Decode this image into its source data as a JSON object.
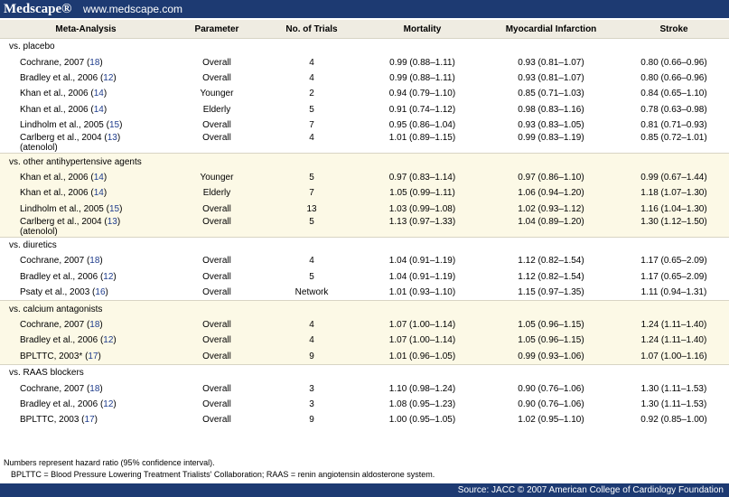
{
  "header": {
    "logo": "Medscape®",
    "url": "www.medscape.com"
  },
  "table": {
    "columns": [
      "Meta-Analysis",
      "Parameter",
      "No. of Trials",
      "Mortality",
      "Myocardial Infarction",
      "Stroke"
    ],
    "groups": [
      {
        "label": "vs. placebo",
        "rows": [
          [
            [
              "Cochrane, 2007 (",
              "18",
              ")"
            ],
            "Overall",
            4,
            "0.99 (0.88–1.11)",
            "0.93 (0.81–1.07)",
            "0.80 (0.66–0.96)"
          ],
          [
            [
              "Bradley et al., 2006 (",
              "12",
              ")"
            ],
            "Overall",
            4,
            "0.99 (0.88–1.11)",
            "0.93 (0.81–1.07)",
            "0.80 (0.66–0.96)"
          ],
          [
            [
              "Khan et al., 2006 (",
              "14",
              ")"
            ],
            "Younger",
            2,
            "0.94 (0.79–1.10)",
            "0.85 (0.71–1.03)",
            "0.84 (0.65–1.10)"
          ],
          [
            [
              "Khan et al., 2006 (",
              "14",
              ")"
            ],
            "Elderly",
            5,
            "0.91 (0.74–1.12)",
            "0.98 (0.83–1.16)",
            "0.78 (0.63–0.98)"
          ],
          [
            [
              "Lindholm et al., 2005 (",
              "15",
              ")"
            ],
            "Overall",
            7,
            "0.95 (0.86–1.04)",
            "0.93 (0.83–1.05)",
            "0.81 (0.71–0.93)"
          ],
          [
            [
              "Carlberg et al., 2004 (",
              "13",
              ")",
              "(atenolol)"
            ],
            "Overall",
            4,
            "1.01 (0.89–1.15)",
            "0.99 (0.83–1.19)",
            "0.85 (0.72–1.01)"
          ]
        ]
      },
      {
        "label": "vs. other antihypertensive agents",
        "rows": [
          [
            [
              "Khan et al., 2006 (",
              "14",
              ")"
            ],
            "Younger",
            5,
            "0.97 (0.83–1.14)",
            "0.97 (0.86–1.10)",
            "0.99 (0.67–1.44)"
          ],
          [
            [
              "Khan et al., 2006 (",
              "14",
              ")"
            ],
            "Elderly",
            7,
            "1.05 (0.99–1.11)",
            "1.06 (0.94–1.20)",
            "1.18 (1.07–1.30)"
          ],
          [
            [
              "Lindholm et al., 2005 (",
              "15",
              ")"
            ],
            "Overall",
            13,
            "1.03 (0.99–1.08)",
            "1.02 (0.93–1.12)",
            "1.16 (1.04–1.30)"
          ],
          [
            [
              "Carlberg et al., 2004 (",
              "13",
              ")",
              "(atenolol)"
            ],
            "Overall",
            5,
            "1.13 (0.97–1.33)",
            "1.04 (0.89–1.20)",
            "1.30 (1.12–1.50)"
          ]
        ]
      },
      {
        "label": "vs. diuretics",
        "rows": [
          [
            [
              "Cochrane, 2007 (",
              "18",
              ")"
            ],
            "Overall",
            4,
            "1.04 (0.91–1.19)",
            "1.12 (0.82–1.54)",
            "1.17 (0.65–2.09)"
          ],
          [
            [
              "Bradley et al., 2006 (",
              "12",
              ")"
            ],
            "Overall",
            5,
            "1.04 (0.91–1.19)",
            "1.12 (0.82–1.54)",
            "1.17 (0.65–2.09)"
          ],
          [
            [
              "Psaty et al., 2003 (",
              "16",
              ")"
            ],
            "Overall",
            "Network",
            "1.01 (0.93–1.10)",
            "1.15 (0.97–1.35)",
            "1.11 (0.94–1.31)"
          ]
        ]
      },
      {
        "label": "vs. calcium antagonists",
        "rows": [
          [
            [
              "Cochrane, 2007 (",
              "18",
              ")"
            ],
            "Overall",
            4,
            "1.07 (1.00–1.14)",
            "1.05 (0.96–1.15)",
            "1.24 (1.11–1.40)"
          ],
          [
            [
              "Bradley et al., 2006 (",
              "12",
              ")"
            ],
            "Overall",
            4,
            "1.07 (1.00–1.14)",
            "1.05 (0.96–1.15)",
            "1.24 (1.11–1.40)"
          ],
          [
            [
              "BPLTTC, 2003* (",
              "17",
              ")"
            ],
            "Overall",
            9,
            "1.01 (0.96–1.05)",
            "0.99 (0.93–1.06)",
            "1.07 (1.00–1.16)"
          ]
        ]
      },
      {
        "label": "vs. RAAS blockers",
        "rows": [
          [
            [
              "Cochrane, 2007 (",
              "18",
              ")"
            ],
            "Overall",
            3,
            "1.10 (0.98–1.24)",
            "0.90 (0.76–1.06)",
            "1.30 (1.11–1.53)"
          ],
          [
            [
              "Bradley et al., 2006 (",
              "12",
              ")"
            ],
            "Overall",
            3,
            "1.08 (0.95–1.23)",
            "0.90 (0.76–1.06)",
            "1.30 (1.11–1.53)"
          ],
          [
            [
              "BPLTTC, 2003 (",
              "17",
              ")"
            ],
            "Overall",
            9,
            "1.00 (0.95–1.05)",
            "1.02 (0.95–1.10)",
            "0.92 (0.85–1.00)"
          ]
        ]
      }
    ]
  },
  "notes": [
    "Numbers represent hazard ratio (95% confidence interval).",
    "BPLTTC = Blood Pressure Lowering Treatment Trialists' Collaboration; RAAS = renin angiotensin aldosterone system."
  ],
  "source": "Source: JACC © 2007 American College of Cardiology Foundation"
}
